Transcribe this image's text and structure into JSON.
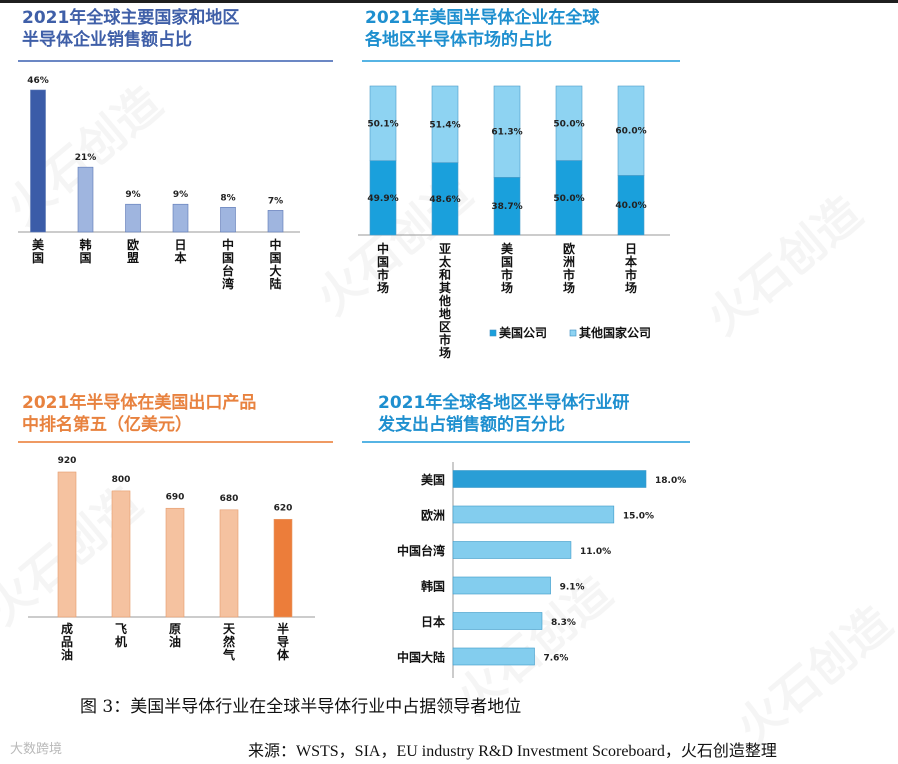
{
  "panels": [
    {
      "title_lines": [
        "2021年全球主要国家和地区",
        "半导体企业销售额占比"
      ],
      "title_color": "#3f5fa8",
      "underline_color": "#6b87c4"
    },
    {
      "title_lines": [
        "2021年美国半导体企业在全球",
        "各地区半导体市场的占比"
      ],
      "title_color": "#1e8fcf",
      "underline_color": "#56b4e4"
    },
    {
      "title_lines": [
        "2021年半导体在美国出口产品",
        "中排名第五（亿美元）"
      ],
      "title_color": "#e8823f",
      "underline_color": "#ef9a63"
    },
    {
      "title_lines": [
        "2021年全球各地区半导体行业研",
        "发支出占销售额的百分比"
      ],
      "title_color": "#1e8fcf",
      "underline_color": "#56b4e4"
    }
  ],
  "chart_data": [
    {
      "type": "bar",
      "categories": [
        "美国",
        "韩国",
        "欧盟",
        "日本",
        "中国台湾",
        "中国大陆"
      ],
      "values": [
        46,
        21,
        9,
        9,
        8,
        7
      ],
      "value_labels": [
        "46%",
        "21%",
        "9%",
        "9%",
        "8%",
        "7%"
      ],
      "highlight_index": 0,
      "colors": {
        "highlight": "#3b5ca8",
        "normal": "#9fb5df"
      },
      "ylim": [
        0,
        46
      ]
    },
    {
      "type": "bar",
      "stacked": true,
      "categories": [
        "中国市场",
        "亚太和其他地区市场",
        "美国市场",
        "欧洲市场",
        "日本市场"
      ],
      "series": [
        {
          "name": "美国公司",
          "values": [
            49.9,
            48.6,
            38.7,
            50.0,
            40.0
          ],
          "labels": [
            "49.9%",
            "48.6%",
            "38.7%",
            "50.0%",
            "40.0%"
          ],
          "color": "#1aa0dc"
        },
        {
          "name": "其他国家公司",
          "values": [
            50.1,
            51.4,
            61.3,
            50.0,
            60.0
          ],
          "labels": [
            "50.1%",
            "51.4%",
            "61.3%",
            "50.0%",
            "60.0%"
          ],
          "color": "#8ed3f2"
        }
      ],
      "ylim": [
        0,
        100
      ],
      "legend": "bottom"
    },
    {
      "type": "bar",
      "categories": [
        "成品油",
        "飞机",
        "原油",
        "天然气",
        "半导体"
      ],
      "values": [
        920,
        800,
        690,
        680,
        620
      ],
      "value_labels": [
        "920",
        "800",
        "690",
        "680",
        "620"
      ],
      "highlight_index": 4,
      "colors": {
        "highlight": "#ec7d3a",
        "normal": "#f5c2a0"
      },
      "ylim": [
        0,
        920
      ]
    },
    {
      "type": "bar",
      "orientation": "horizontal",
      "categories": [
        "美国",
        "欧洲",
        "中国台湾",
        "韩国",
        "日本",
        "中国大陆"
      ],
      "values": [
        18.0,
        15.0,
        11.0,
        9.1,
        8.3,
        7.6
      ],
      "value_labels": [
        "18.0%",
        "15.0%",
        "11.0%",
        "9.1%",
        "8.3%",
        "7.6%"
      ],
      "highlight_index": 0,
      "colors": {
        "highlight": "#2a9ed6",
        "normal": "#83cdee"
      },
      "xlim": [
        0,
        18
      ]
    }
  ],
  "caption": "图 3：美国半导体行业在全球半导体行业中占据领导者地位",
  "source": "来源：WSTS，SIA，EU industry R&D Investment Scoreboard，火石创造整理",
  "brand": "大数跨境",
  "watermark": "火石创造"
}
